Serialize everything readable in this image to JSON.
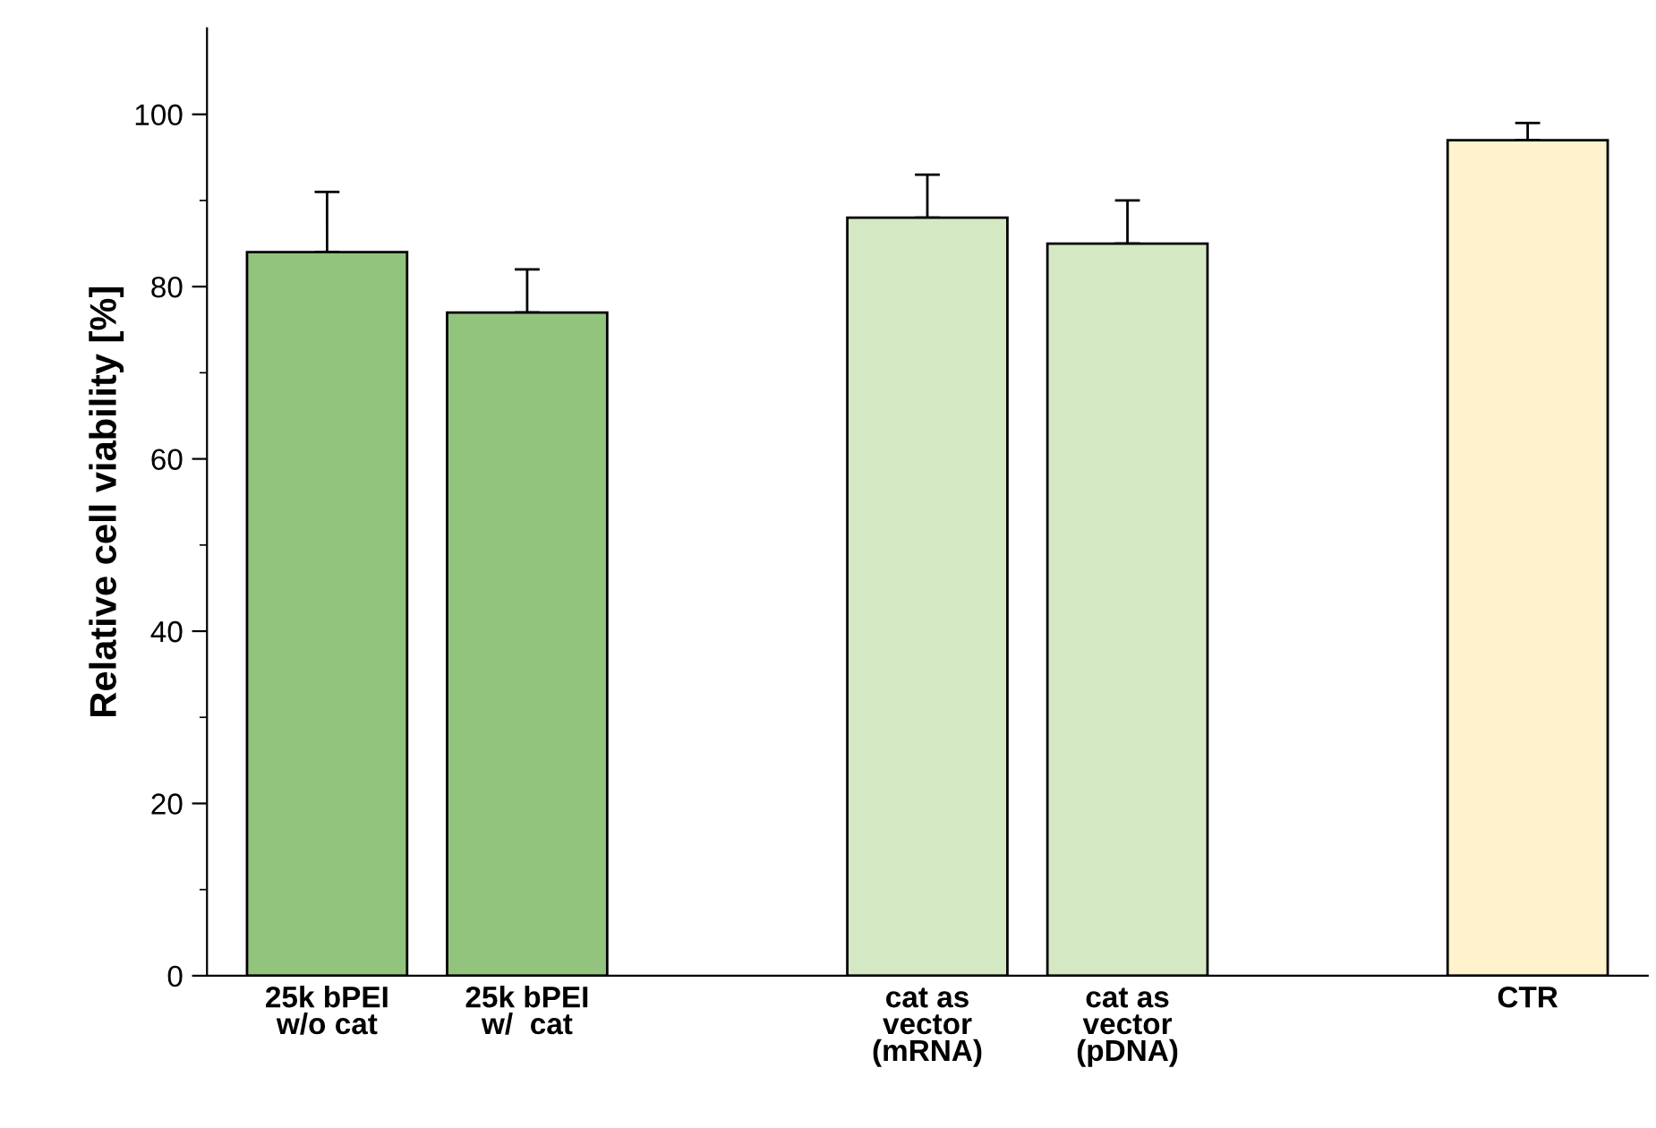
{
  "chart_data": {
    "type": "bar",
    "ylabel": "Relative cell viability [%]",
    "categories": [
      "25k bPEI\nw/o cat",
      "25k bPEI\nw/  cat",
      null,
      "cat as\nvector\n(mRNA)",
      "cat as\nvector\n(pDNA)",
      null,
      "CTR"
    ],
    "values": [
      84,
      77,
      null,
      88,
      85,
      null,
      97
    ],
    "colors": [
      "#93c47d",
      "#93c47d",
      null,
      "#d5e8c4",
      "#d5e8c4",
      null,
      "#fff2cc"
    ],
    "errors": [
      [
        84,
        91
      ],
      [
        77,
        82
      ],
      null,
      [
        88,
        93
      ],
      [
        85,
        90
      ],
      null,
      [
        97,
        99
      ]
    ],
    "ylim": [
      0,
      110
    ],
    "yticks": [
      0,
      {
        "value": 10,
        "label": null
      },
      20,
      {
        "value": 30,
        "label": null
      },
      40,
      {
        "value": 50,
        "label": null
      },
      60,
      {
        "value": 70,
        "label": null
      },
      80,
      {
        "value": 90,
        "label": null
      },
      100
    ],
    "grid": false,
    "legend": false
  }
}
